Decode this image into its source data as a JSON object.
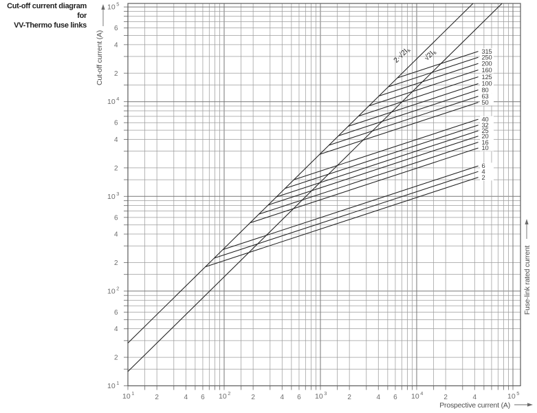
{
  "title": {
    "line1": "Cut-off current diagram for",
    "line2": "VV-Thermo fuse links"
  },
  "chart_data": {
    "type": "line",
    "title": "Cut-off current diagram for VV-Thermo fuse links",
    "xlabel": "Prospective current (A)",
    "ylabel": "Cut-off current (A)",
    "y2label": "Fuse-link rated current",
    "x_scale": "log",
    "y_scale": "log",
    "xlim": [
      10,
      100000
    ],
    "ylim": [
      10,
      100000
    ],
    "grid": "on",
    "grid_minor_multipliers": [
      1,
      1.5,
      2,
      3,
      4,
      5,
      6,
      7,
      8,
      9
    ],
    "x_ticks": [
      {
        "v": 10,
        "t": "10",
        "exp": "1"
      },
      {
        "v": 20,
        "t": "2"
      },
      {
        "v": 40,
        "t": "4"
      },
      {
        "v": 60,
        "t": "6"
      },
      {
        "v": 100,
        "t": "10",
        "exp": "2"
      },
      {
        "v": 200,
        "t": "2"
      },
      {
        "v": 400,
        "t": "4"
      },
      {
        "v": 600,
        "t": "6"
      },
      {
        "v": 1000,
        "t": "10",
        "exp": "3"
      },
      {
        "v": 2000,
        "t": "2"
      },
      {
        "v": 4000,
        "t": "4"
      },
      {
        "v": 6000,
        "t": "6"
      },
      {
        "v": 10000,
        "t": "10",
        "exp": "4"
      },
      {
        "v": 20000,
        "t": "2"
      },
      {
        "v": 40000,
        "t": "4"
      },
      {
        "v": 100000,
        "t": "10",
        "exp": "5"
      }
    ],
    "y_ticks": [
      {
        "v": 100000,
        "t": "10",
        "exp": "5"
      },
      {
        "v": 60000,
        "t": "6"
      },
      {
        "v": 40000,
        "t": "4"
      },
      {
        "v": 20000,
        "t": "2"
      },
      {
        "v": 10000,
        "t": "10",
        "exp": "4"
      },
      {
        "v": 6000,
        "t": "6"
      },
      {
        "v": 4000,
        "t": "4"
      },
      {
        "v": 2000,
        "t": "2"
      },
      {
        "v": 1000,
        "t": "10",
        "exp": "3"
      },
      {
        "v": 600,
        "t": "6"
      },
      {
        "v": 400,
        "t": "4"
      },
      {
        "v": 200,
        "t": "2"
      },
      {
        "v": 100,
        "t": "10",
        "exp": "2"
      },
      {
        "v": 60,
        "t": "6"
      },
      {
        "v": 40,
        "t": "4"
      },
      {
        "v": 20,
        "t": "2"
      },
      {
        "v": 10,
        "t": "10",
        "exp": "1"
      }
    ],
    "reference_lines": [
      {
        "label": "2·√2I",
        "sub": "k",
        "factor": 2.8284
      },
      {
        "label": "√2I",
        "sub": "k",
        "factor": 1.4142
      }
    ],
    "fuse_curves": {
      "slope_loglog": 0.3333,
      "branch_from": "2·√2·Ik reference line",
      "end_prospective_a": 43600,
      "series": [
        {
          "rating_a": "315",
          "cutoff_at_end_a": 34000
        },
        {
          "rating_a": "250",
          "cutoff_at_end_a": 29400
        },
        {
          "rating_a": "200",
          "cutoff_at_end_a": 25300
        },
        {
          "rating_a": "160",
          "cutoff_at_end_a": 21600
        },
        {
          "rating_a": "125",
          "cutoff_at_end_a": 18300
        },
        {
          "rating_a": "100",
          "cutoff_at_end_a": 15500
        },
        {
          "rating_a": "80",
          "cutoff_at_end_a": 13300
        },
        {
          "rating_a": "63",
          "cutoff_at_end_a": 11400
        },
        {
          "rating_a": "50",
          "cutoff_at_end_a": 9830
        },
        {
          "rating_a": "40",
          "cutoff_at_end_a": 6520
        },
        {
          "rating_a": "32",
          "cutoff_at_end_a": 5660
        },
        {
          "rating_a": "25",
          "cutoff_at_end_a": 4930
        },
        {
          "rating_a": "20",
          "cutoff_at_end_a": 4330
        },
        {
          "rating_a": "16",
          "cutoff_at_end_a": 3730
        },
        {
          "rating_a": "10",
          "cutoff_at_end_a": 3240
        },
        {
          "rating_a": "6",
          "cutoff_at_end_a": 2100
        },
        {
          "rating_a": "4",
          "cutoff_at_end_a": 1830
        },
        {
          "rating_a": "2",
          "cutoff_at_end_a": 1590
        }
      ]
    }
  }
}
